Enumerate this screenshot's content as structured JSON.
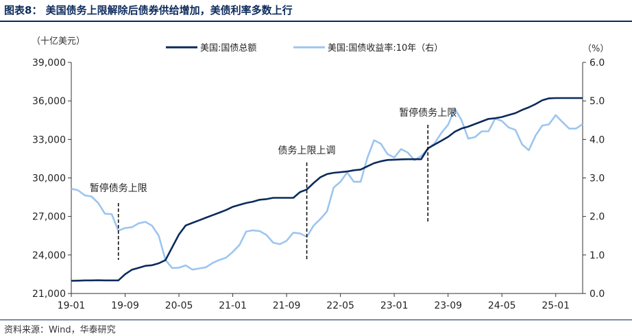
{
  "title": "图表8： 美国债务上限解除后债券供给增加，美债利率多数上行",
  "source": "资料来源：Wind，华泰研究",
  "colors": {
    "debt": "#0b2a5b",
    "yield": "#9cc5ee",
    "axis": "#333333",
    "title": "#0b2a5b"
  },
  "chart_data": {
    "type": "line",
    "title": "图表8： 美国债务上限解除后债券供给增加，美债利率多数上行",
    "y_left_unit": "（十亿美元）",
    "y_right_unit": "（%）",
    "y_left_lim": [
      21000,
      39000
    ],
    "y_right_lim": [
      0.0,
      6.0
    ],
    "y_left_ticks": [
      "39,000",
      "36,000",
      "33,000",
      "30,000",
      "27,000",
      "24,000",
      "21,000"
    ],
    "y_left_tick_values": [
      39000,
      36000,
      33000,
      30000,
      27000,
      24000,
      21000
    ],
    "y_right_ticks": [
      "6.0",
      "5.0",
      "4.0",
      "3.0",
      "2.0",
      "1.0",
      "0.0"
    ],
    "y_right_tick_values": [
      6,
      5,
      4,
      3,
      2,
      1,
      0
    ],
    "x_lim": [
      "2019-01",
      "2025-05"
    ],
    "x_ticks": [
      "19-01",
      "19-09",
      "20-05",
      "21-01",
      "21-09",
      "22-05",
      "23-01",
      "23-09",
      "24-05",
      "25-01"
    ],
    "x_tick_dates": [
      "2019-01",
      "2019-09",
      "2020-05",
      "2021-01",
      "2021-09",
      "2022-05",
      "2023-01",
      "2023-09",
      "2024-05",
      "2025-01"
    ],
    "legend": [
      "美国:国债总额",
      "美国:国债收益率:10年（右）"
    ],
    "legend_position": "top",
    "grid": false,
    "series": [
      {
        "name": "美国:国债总额",
        "axis": "left",
        "points": [
          [
            "2019-01",
            21990
          ],
          [
            "2019-02",
            22000
          ],
          [
            "2019-03",
            22020
          ],
          [
            "2019-04",
            22020
          ],
          [
            "2019-05",
            22030
          ],
          [
            "2019-06",
            22020
          ],
          [
            "2019-07",
            22020
          ],
          [
            "2019-08",
            22020
          ],
          [
            "2019-09",
            22500
          ],
          [
            "2019-10",
            22850
          ],
          [
            "2019-11",
            23000
          ],
          [
            "2019-12",
            23150
          ],
          [
            "2020-01",
            23200
          ],
          [
            "2020-02",
            23350
          ],
          [
            "2020-03",
            23600
          ],
          [
            "2020-04",
            24600
          ],
          [
            "2020-05",
            25600
          ],
          [
            "2020-06",
            26300
          ],
          [
            "2020-07",
            26500
          ],
          [
            "2020-08",
            26700
          ],
          [
            "2020-09",
            26900
          ],
          [
            "2020-10",
            27100
          ],
          [
            "2020-11",
            27300
          ],
          [
            "2020-12",
            27500
          ],
          [
            "2021-01",
            27750
          ],
          [
            "2021-02",
            27900
          ],
          [
            "2021-03",
            28050
          ],
          [
            "2021-04",
            28150
          ],
          [
            "2021-05",
            28300
          ],
          [
            "2021-06",
            28350
          ],
          [
            "2021-07",
            28450
          ],
          [
            "2021-08",
            28450
          ],
          [
            "2021-09",
            28450
          ],
          [
            "2021-10",
            28450
          ],
          [
            "2021-11",
            28900
          ],
          [
            "2021-12",
            29100
          ],
          [
            "2022-01",
            29600
          ],
          [
            "2022-02",
            30050
          ],
          [
            "2022-03",
            30300
          ],
          [
            "2022-04",
            30400
          ],
          [
            "2022-05",
            30450
          ],
          [
            "2022-06",
            30500
          ],
          [
            "2022-07",
            30600
          ],
          [
            "2022-08",
            30650
          ],
          [
            "2022-09",
            30900
          ],
          [
            "2022-10",
            31150
          ],
          [
            "2022-11",
            31300
          ],
          [
            "2022-12",
            31400
          ],
          [
            "2023-01",
            31420
          ],
          [
            "2023-02",
            31450
          ],
          [
            "2023-03",
            31460
          ],
          [
            "2023-04",
            31460
          ],
          [
            "2023-05",
            31460
          ],
          [
            "2023-06",
            32300
          ],
          [
            "2023-07",
            32600
          ],
          [
            "2023-08",
            32900
          ],
          [
            "2023-09",
            33200
          ],
          [
            "2023-10",
            33600
          ],
          [
            "2023-11",
            33850
          ],
          [
            "2023-12",
            34000
          ],
          [
            "2024-01",
            34200
          ],
          [
            "2024-02",
            34400
          ],
          [
            "2024-03",
            34600
          ],
          [
            "2024-04",
            34650
          ],
          [
            "2024-05",
            34750
          ],
          [
            "2024-06",
            34900
          ],
          [
            "2024-07",
            35050
          ],
          [
            "2024-08",
            35300
          ],
          [
            "2024-09",
            35500
          ],
          [
            "2024-10",
            35750
          ],
          [
            "2024-11",
            36050
          ],
          [
            "2024-12",
            36200
          ],
          [
            "2025-01",
            36220
          ],
          [
            "2025-02",
            36220
          ],
          [
            "2025-03",
            36220
          ],
          [
            "2025-04",
            36220
          ],
          [
            "2025-05",
            36220
          ]
        ]
      },
      {
        "name": "美国:国债收益率:10年（右）",
        "axis": "right",
        "points": [
          [
            "2019-01",
            2.72
          ],
          [
            "2019-02",
            2.68
          ],
          [
            "2019-03",
            2.55
          ],
          [
            "2019-04",
            2.52
          ],
          [
            "2019-05",
            2.35
          ],
          [
            "2019-06",
            2.07
          ],
          [
            "2019-07",
            2.06
          ],
          [
            "2019-08",
            1.63
          ],
          [
            "2019-09",
            1.7
          ],
          [
            "2019-10",
            1.72
          ],
          [
            "2019-11",
            1.82
          ],
          [
            "2019-12",
            1.86
          ],
          [
            "2020-01",
            1.76
          ],
          [
            "2020-02",
            1.5
          ],
          [
            "2020-03",
            0.87
          ],
          [
            "2020-04",
            0.66
          ],
          [
            "2020-05",
            0.67
          ],
          [
            "2020-06",
            0.73
          ],
          [
            "2020-07",
            0.62
          ],
          [
            "2020-08",
            0.65
          ],
          [
            "2020-09",
            0.68
          ],
          [
            "2020-10",
            0.79
          ],
          [
            "2020-11",
            0.87
          ],
          [
            "2020-12",
            0.93
          ],
          [
            "2021-01",
            1.08
          ],
          [
            "2021-02",
            1.26
          ],
          [
            "2021-03",
            1.61
          ],
          [
            "2021-04",
            1.64
          ],
          [
            "2021-05",
            1.62
          ],
          [
            "2021-06",
            1.52
          ],
          [
            "2021-07",
            1.32
          ],
          [
            "2021-08",
            1.28
          ],
          [
            "2021-09",
            1.37
          ],
          [
            "2021-10",
            1.58
          ],
          [
            "2021-11",
            1.56
          ],
          [
            "2021-12",
            1.47
          ],
          [
            "2022-01",
            1.76
          ],
          [
            "2022-02",
            1.93
          ],
          [
            "2022-03",
            2.13
          ],
          [
            "2022-04",
            2.75
          ],
          [
            "2022-05",
            2.9
          ],
          [
            "2022-06",
            3.14
          ],
          [
            "2022-07",
            2.9
          ],
          [
            "2022-08",
            2.9
          ],
          [
            "2022-09",
            3.52
          ],
          [
            "2022-10",
            3.98
          ],
          [
            "2022-11",
            3.89
          ],
          [
            "2022-12",
            3.62
          ],
          [
            "2023-01",
            3.53
          ],
          [
            "2023-02",
            3.75
          ],
          [
            "2023-03",
            3.66
          ],
          [
            "2023-04",
            3.46
          ],
          [
            "2023-05",
            3.57
          ],
          [
            "2023-06",
            3.75
          ],
          [
            "2023-07",
            3.9
          ],
          [
            "2023-08",
            4.17
          ],
          [
            "2023-09",
            4.38
          ],
          [
            "2023-10",
            4.8
          ],
          [
            "2023-11",
            4.5
          ],
          [
            "2023-12",
            4.02
          ],
          [
            "2024-01",
            4.06
          ],
          [
            "2024-02",
            4.21
          ],
          [
            "2024-03",
            4.21
          ],
          [
            "2024-04",
            4.54
          ],
          [
            "2024-05",
            4.48
          ],
          [
            "2024-06",
            4.31
          ],
          [
            "2024-07",
            4.25
          ],
          [
            "2024-08",
            3.87
          ],
          [
            "2024-09",
            3.72
          ],
          [
            "2024-10",
            4.1
          ],
          [
            "2024-11",
            4.36
          ],
          [
            "2024-12",
            4.39
          ],
          [
            "2025-01",
            4.63
          ],
          [
            "2025-02",
            4.45
          ],
          [
            "2025-03",
            4.28
          ],
          [
            "2025-04",
            4.28
          ],
          [
            "2025-05",
            4.4
          ]
        ]
      }
    ],
    "annotations": [
      {
        "text": "暂停债务上限",
        "date": "2019-08"
      },
      {
        "text": "债务上限上调",
        "date": "2021-12"
      },
      {
        "text": "暂停债务上限",
        "date": "2023-06"
      }
    ]
  }
}
